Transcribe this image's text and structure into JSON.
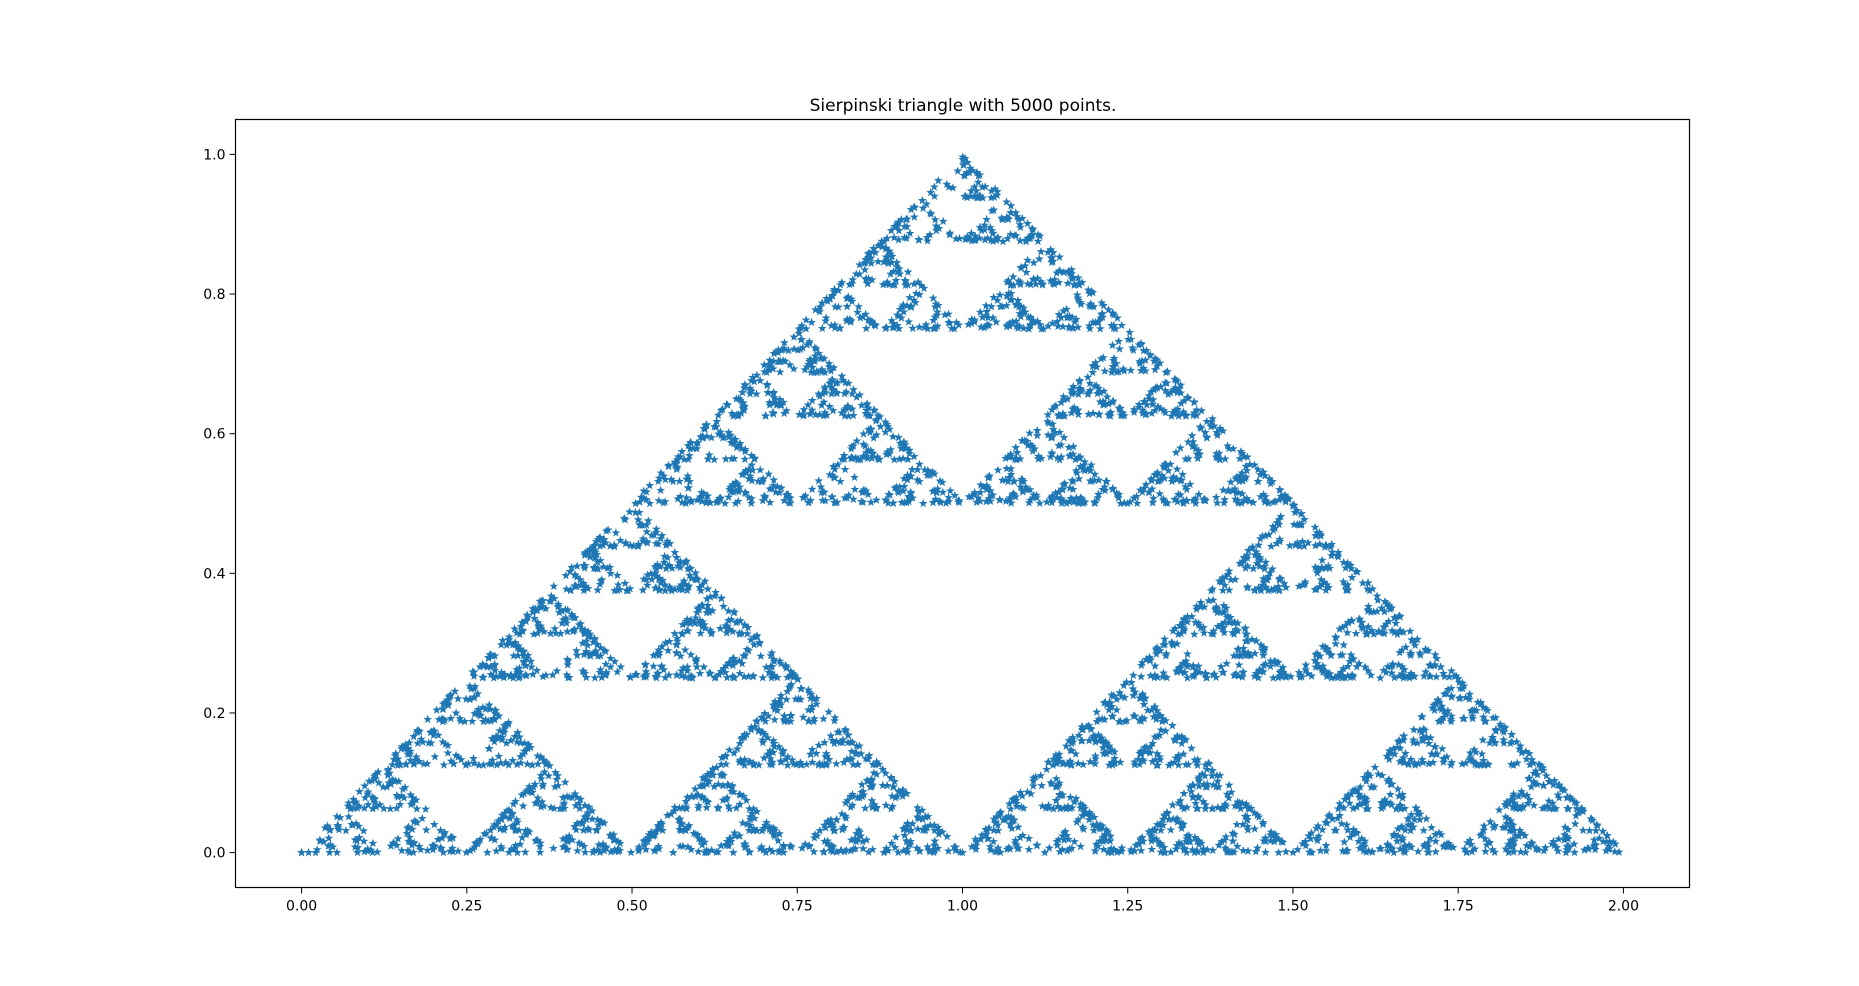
{
  "chart_data": {
    "type": "scatter",
    "title": "Sierpinski triangle with 5000 points.",
    "xlabel": "",
    "ylabel": "",
    "xlim": [
      -0.1,
      2.1
    ],
    "ylim": [
      -0.05,
      1.05
    ],
    "xticks": [
      "0.00",
      "0.25",
      "0.50",
      "0.75",
      "1.00",
      "1.25",
      "1.50",
      "1.75",
      "2.00"
    ],
    "yticks": [
      "0.0",
      "0.2",
      "0.4",
      "0.6",
      "0.8",
      "1.0"
    ],
    "grid": false,
    "legend": "none",
    "marker": "star",
    "color": "#1f77b4",
    "series": [
      {
        "num_points": 5000,
        "vertices": [
          [
            0,
            0
          ],
          [
            2,
            0
          ],
          [
            1,
            1
          ]
        ],
        "construction": "chaos game",
        "start": [
          0,
          0
        ]
      }
    ]
  }
}
